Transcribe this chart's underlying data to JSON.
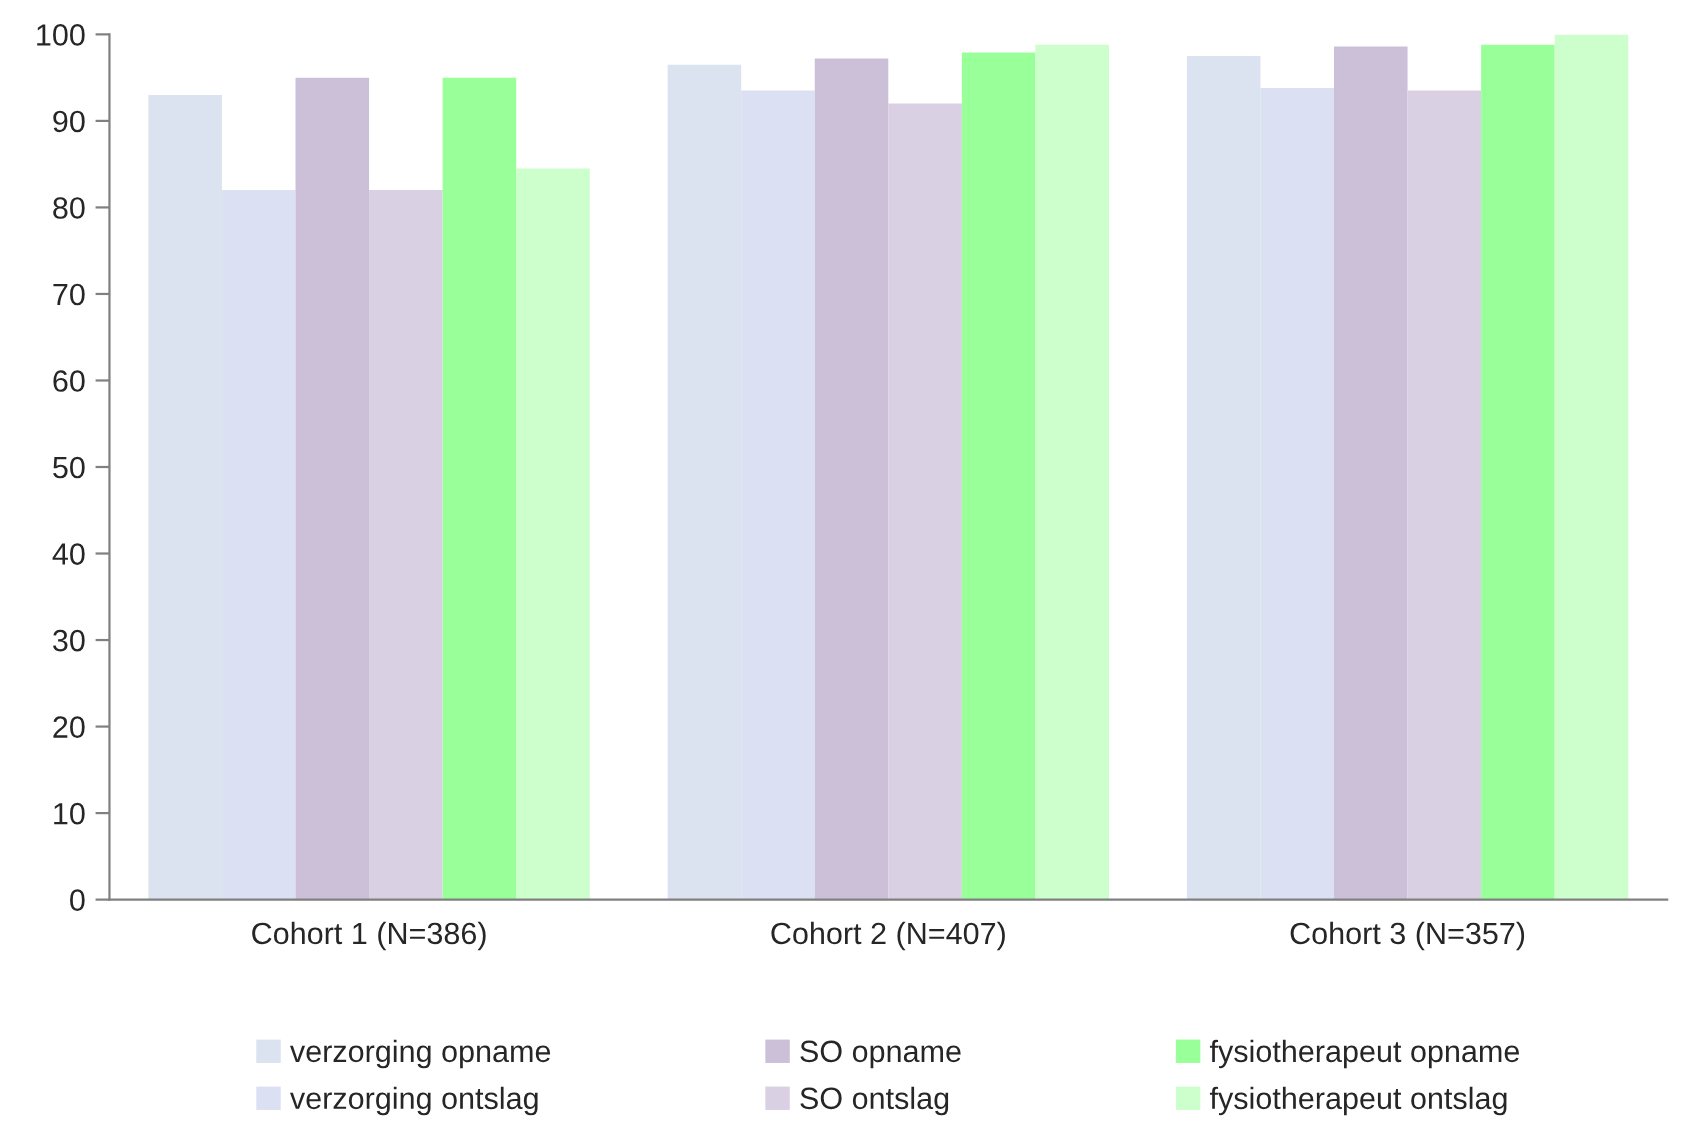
{
  "chart_data": {
    "type": "bar",
    "categories": [
      "Cohort 1 (N=386)",
      "Cohort 2 (N=407)",
      "Cohort 3 (N=357)"
    ],
    "series": [
      {
        "name": "verzorging opname",
        "color": "#dae3ef",
        "values": [
          93,
          96.5,
          97.5
        ]
      },
      {
        "name": "verzorging ontslag",
        "color": "#dbe1f2",
        "values": [
          82,
          93.5,
          93.8
        ]
      },
      {
        "name": "SO opname",
        "color": "#ccc0d9",
        "values": [
          95,
          97.2,
          98.6
        ]
      },
      {
        "name": "SO ontslag",
        "color": "#d9d0e3",
        "values": [
          82,
          92,
          93.5
        ]
      },
      {
        "name": "fysiotherapeut opname",
        "color": "#99ff99",
        "values": [
          95,
          97.9,
          98.8
        ]
      },
      {
        "name": "fysiotherapeut ontslag",
        "color": "#ccffcc",
        "values": [
          84.5,
          98.8,
          100
        ]
      }
    ],
    "ylim": [
      0,
      100
    ],
    "yticks": [
      0,
      10,
      20,
      30,
      40,
      50,
      60,
      70,
      80,
      90,
      100
    ],
    "grid": false,
    "legend": "bottom"
  }
}
